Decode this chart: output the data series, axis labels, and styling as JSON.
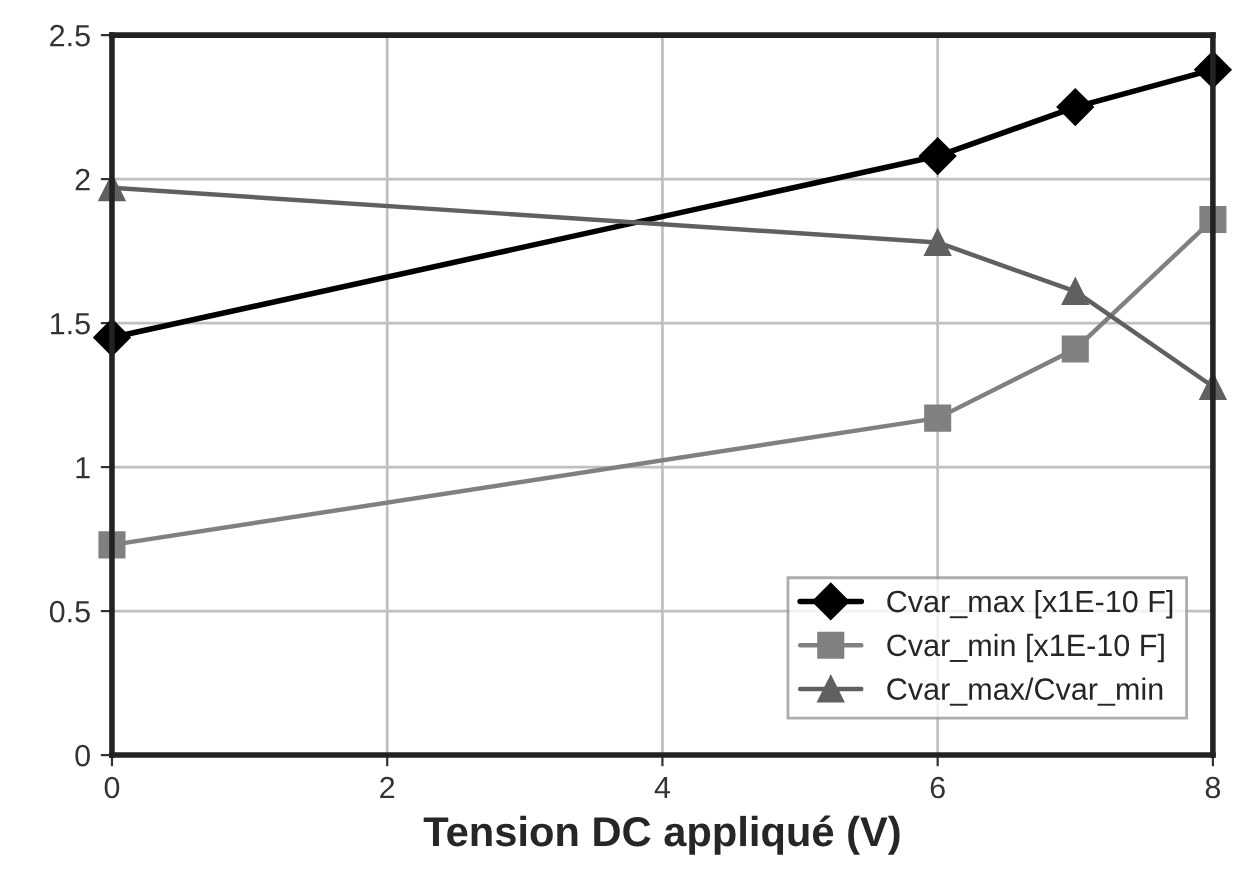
{
  "chart_data": {
    "type": "line",
    "xlabel": "Tension DC appliqué (V)",
    "x": [
      0,
      6,
      7,
      8
    ],
    "series": [
      {
        "name": "Cvar_max [x1E-10 F]",
        "color": "#000000",
        "marker": "diamond",
        "values": [
          1.45,
          2.08,
          2.25,
          2.38
        ]
      },
      {
        "name": "Cvar_min [x1E-10 F]",
        "color": "#808080",
        "marker": "square",
        "values": [
          0.73,
          1.17,
          1.41,
          1.86
        ]
      },
      {
        "name": "Cvar_max/Cvar_min",
        "color": "#606060",
        "marker": "triangle",
        "values": [
          1.97,
          1.78,
          1.61,
          1.28
        ]
      }
    ],
    "xlim": [
      0,
      8
    ],
    "xticks": [
      0,
      2,
      4,
      6,
      8
    ],
    "ylim": [
      0,
      2.5
    ],
    "yticks": [
      0,
      0.5,
      1,
      1.5,
      2,
      2.5
    ],
    "grid": true,
    "legend": "bottom right",
    "line_style": "solid"
  }
}
